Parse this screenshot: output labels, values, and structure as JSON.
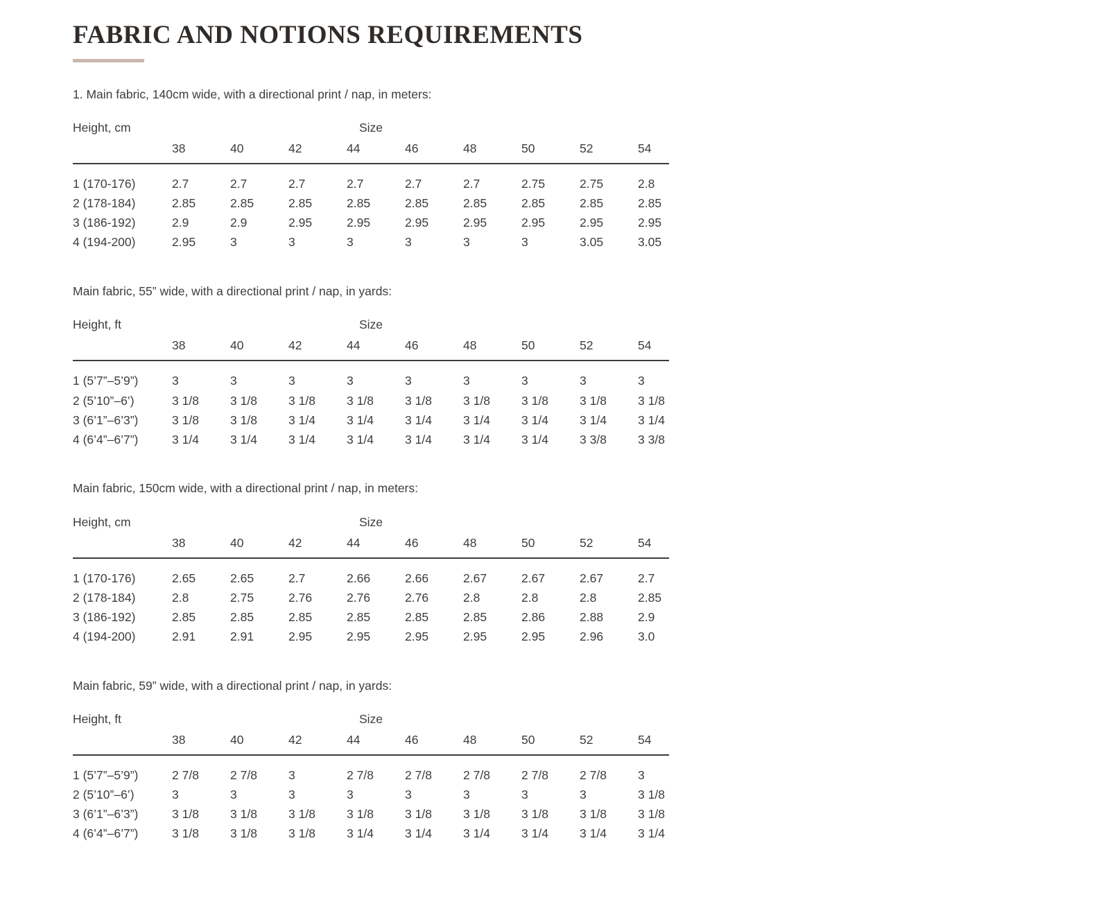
{
  "title": "FABRIC AND NOTIONS REQUIREMENTS",
  "accent_color": "#c9b7ad",
  "sections": [
    {
      "intro": "1. Main fabric, 140cm wide, with a directional print / nap, in meters:",
      "height_label": "Height, cm",
      "size_label": "Size",
      "sizes": [
        "38",
        "40",
        "42",
        "44",
        "46",
        "48",
        "50",
        "52",
        "54"
      ],
      "rows": [
        {
          "height": "1 (170-176)",
          "values": [
            "2.7",
            "2.7",
            "2.7",
            "2.7",
            "2.7",
            "2.7",
            "2.75",
            "2.75",
            "2.8"
          ]
        },
        {
          "height": "2 (178-184)",
          "values": [
            "2.85",
            "2.85",
            "2.85",
            "2.85",
            "2.85",
            "2.85",
            "2.85",
            "2.85",
            "2.85"
          ]
        },
        {
          "height": "3 (186-192)",
          "values": [
            "2.9",
            "2.9",
            "2.95",
            "2.95",
            "2.95",
            "2.95",
            "2.95",
            "2.95",
            "2.95"
          ]
        },
        {
          "height": "4 (194-200)",
          "values": [
            "2.95",
            "3",
            "3",
            "3",
            "3",
            "3",
            "3",
            "3.05",
            "3.05"
          ]
        }
      ]
    },
    {
      "intro": "Main fabric, 55” wide, with a directional print / nap, in yards:",
      "height_label": "Height, ft",
      "size_label": "Size",
      "sizes": [
        "38",
        "40",
        "42",
        "44",
        "46",
        "48",
        "50",
        "52",
        "54"
      ],
      "rows": [
        {
          "height": "1 (5’7”–5’9”)",
          "values": [
            "3",
            "3",
            "3",
            "3",
            "3",
            "3",
            "3",
            "3",
            "3"
          ]
        },
        {
          "height": "2 (5’10”–6’)",
          "values": [
            "3 1/8",
            "3 1/8",
            "3 1/8",
            "3 1/8",
            "3 1/8",
            "3 1/8",
            "3 1/8",
            "3 1/8",
            "3 1/8"
          ]
        },
        {
          "height": "3 (6’1”–6’3”)",
          "values": [
            "3 1/8",
            "3 1/8",
            "3 1/4",
            "3 1/4",
            "3 1/4",
            "3 1/4",
            "3 1/4",
            "3 1/4",
            "3 1/4"
          ]
        },
        {
          "height": "4 (6’4”–6’7”)",
          "values": [
            "3 1/4",
            "3 1/4",
            "3 1/4",
            "3 1/4",
            "3 1/4",
            "3 1/4",
            "3 1/4",
            "3 3/8",
            "3 3/8"
          ]
        }
      ]
    },
    {
      "intro": "Main fabric, 150cm wide, with a directional print / nap, in meters:",
      "height_label": "Height, cm",
      "size_label": "Size",
      "sizes": [
        "38",
        "40",
        "42",
        "44",
        "46",
        "48",
        "50",
        "52",
        "54"
      ],
      "rows": [
        {
          "height": "1 (170-176)",
          "values": [
            "2.65",
            "2.65",
            "2.7",
            "2.66",
            "2.66",
            "2.67",
            "2.67",
            "2.67",
            "2.7"
          ]
        },
        {
          "height": "2 (178-184)",
          "values": [
            "2.8",
            "2.75",
            "2.76",
            "2.76",
            "2.76",
            "2.8",
            "2.8",
            "2.8",
            "2.85"
          ]
        },
        {
          "height": "3 (186-192)",
          "values": [
            "2.85",
            "2.85",
            "2.85",
            "2.85",
            "2.85",
            "2.85",
            "2.86",
            "2.88",
            "2.9"
          ]
        },
        {
          "height": "4 (194-200)",
          "values": [
            "2.91",
            "2.91",
            "2.95",
            "2.95",
            "2.95",
            "2.95",
            "2.95",
            "2.96",
            "3.0"
          ]
        }
      ]
    },
    {
      "intro": "Main fabric, 59” wide, with a directional print / nap, in yards:",
      "height_label": "Height, ft",
      "size_label": "Size",
      "sizes": [
        "38",
        "40",
        "42",
        "44",
        "46",
        "48",
        "50",
        "52",
        "54"
      ],
      "rows": [
        {
          "height": "1 (5’7”–5’9”)",
          "values": [
            "2 7/8",
            "2 7/8",
            "3",
            "2 7/8",
            "2 7/8",
            "2 7/8",
            "2 7/8",
            "2 7/8",
            "3"
          ]
        },
        {
          "height": "2 (5’10”–6’)",
          "values": [
            "3",
            "3",
            "3",
            "3",
            "3",
            "3",
            "3",
            "3",
            "3 1/8"
          ]
        },
        {
          "height": "3 (6’1”–6’3”)",
          "values": [
            "3 1/8",
            "3 1/8",
            "3 1/8",
            "3 1/8",
            "3 1/8",
            "3 1/8",
            "3 1/8",
            "3 1/8",
            "3 1/8"
          ]
        },
        {
          "height": "4 (6’4”–6’7”)",
          "values": [
            "3 1/8",
            "3 1/8",
            "3 1/8",
            "3 1/4",
            "3 1/4",
            "3 1/4",
            "3 1/4",
            "3 1/4",
            "3 1/4"
          ]
        }
      ]
    }
  ]
}
